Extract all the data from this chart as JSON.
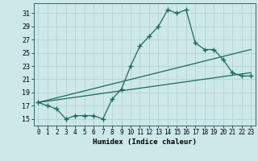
{
  "title": "",
  "xlabel": "Humidex (Indice chaleur)",
  "background_color": "#cce8e8",
  "grid_color": "#b8d4d4",
  "line_color": "#1a6b5a",
  "xlim": [
    -0.5,
    23.5
  ],
  "ylim": [
    14.0,
    32.5
  ],
  "xticks": [
    0,
    1,
    2,
    3,
    4,
    5,
    6,
    7,
    8,
    9,
    10,
    11,
    12,
    13,
    14,
    15,
    16,
    17,
    18,
    19,
    20,
    21,
    22,
    23
  ],
  "yticks": [
    15,
    17,
    19,
    21,
    23,
    25,
    27,
    29,
    31
  ],
  "line1_x": [
    0,
    1,
    2,
    3,
    4,
    5,
    6,
    7,
    8,
    9,
    10,
    11,
    12,
    13,
    14,
    15,
    16,
    17,
    18,
    19,
    20,
    21,
    22,
    23
  ],
  "line1_y": [
    17.5,
    17.0,
    16.5,
    15.0,
    15.5,
    15.5,
    15.5,
    15.0,
    18.0,
    19.5,
    23.0,
    26.0,
    27.5,
    29.0,
    31.5,
    31.0,
    31.5,
    26.5,
    25.5,
    25.5,
    24.0,
    22.0,
    21.5,
    21.5
  ],
  "line2_x": [
    0,
    23
  ],
  "line2_y": [
    17.5,
    22.0
  ],
  "line3_x": [
    0,
    23
  ],
  "line3_y": [
    17.5,
    25.5
  ],
  "xlabel_fontsize": 6.5,
  "tick_fontsize": 5.5
}
